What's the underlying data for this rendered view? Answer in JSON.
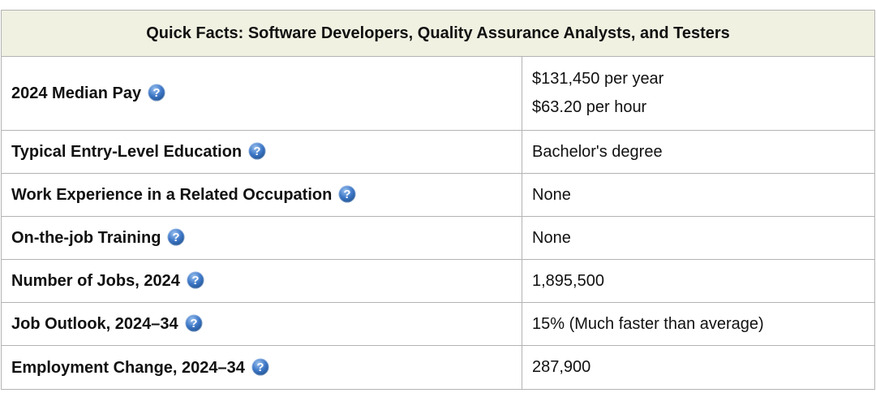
{
  "table": {
    "title": "Quick Facts: Software Developers, Quality Assurance Analysts, and Testers",
    "rows": [
      {
        "label": "2024 Median Pay",
        "values": [
          "$131,450 per year",
          "$63.20 per hour"
        ]
      },
      {
        "label": "Typical Entry-Level Education",
        "values": [
          "Bachelor's degree"
        ]
      },
      {
        "label": "Work Experience in a Related Occupation",
        "values": [
          "None"
        ]
      },
      {
        "label": "On-the-job Training",
        "values": [
          "None"
        ]
      },
      {
        "label": "Number of Jobs, 2024",
        "values": [
          "1,895,500"
        ]
      },
      {
        "label": "Job Outlook, 2024–34",
        "values": [
          "15% (Much faster than average)"
        ]
      },
      {
        "label": "Employment Change, 2024–34",
        "values": [
          "287,900"
        ]
      }
    ]
  },
  "icons": {
    "help_icon": "question-mark-circle-icon",
    "help_icon_glyph": "?"
  },
  "colors": {
    "header_background": "#f1f1e2",
    "border": "#b3b3b3",
    "help_icon_blue": "#3d77c7"
  }
}
